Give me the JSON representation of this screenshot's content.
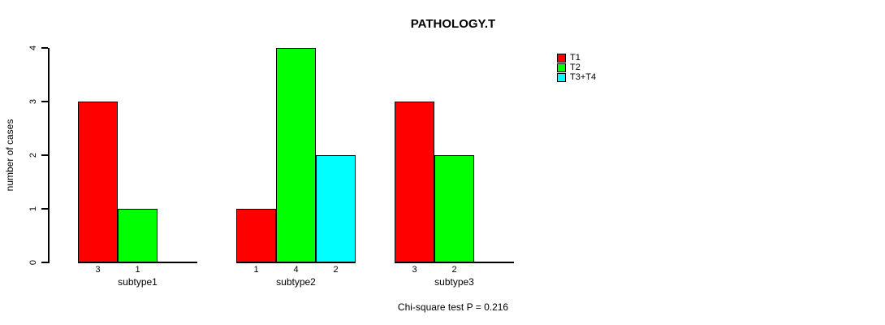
{
  "title": "PATHOLOGY.T",
  "footer": "Chi-square test P = 0.216",
  "y_axis": {
    "label": "number of cases",
    "ticks": [
      "0",
      "1",
      "2",
      "3",
      "4"
    ]
  },
  "legend": {
    "items": [
      {
        "label": "T1",
        "color": "#ff0000"
      },
      {
        "label": "T2",
        "color": "#00ff00"
      },
      {
        "label": "T3+T4",
        "color": "#00ffff"
      }
    ]
  },
  "chart_data": {
    "type": "bar",
    "title": "PATHOLOGY.T",
    "categories": [
      "subtype1",
      "subtype2",
      "subtype3"
    ],
    "series": [
      {
        "name": "T1",
        "color": "#ff0000",
        "values": [
          3,
          1,
          3
        ]
      },
      {
        "name": "T2",
        "color": "#00ff00",
        "values": [
          1,
          4,
          2
        ]
      },
      {
        "name": "T3+T4",
        "color": "#00ffff",
        "values": [
          0,
          2,
          0
        ]
      }
    ],
    "bar_value_labels": [
      [
        "3",
        "1",
        ""
      ],
      [
        "1",
        "4",
        "2"
      ],
      [
        "3",
        "2",
        ""
      ]
    ],
    "xlabel": "",
    "ylabel": "number of cases",
    "yticks": [
      0,
      1,
      2,
      3,
      4
    ],
    "ylim": [
      0,
      4
    ],
    "grid": false,
    "legend_position": "right-of-plot-top",
    "annotation": "Chi-square test P = 0.216"
  }
}
